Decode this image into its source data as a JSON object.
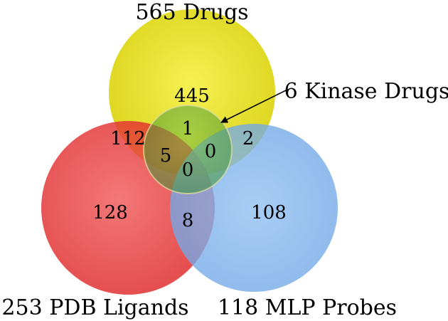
{
  "diagram": {
    "type": "venn",
    "sets": [
      {
        "id": "drugs",
        "label": "565 Drugs",
        "color": "#e8e000"
      },
      {
        "id": "pdb",
        "label": "253 PDB Ligands",
        "color": "#e83030"
      },
      {
        "id": "mlp",
        "label": "118 MLP Probes",
        "color": "#7fb2ea"
      }
    ],
    "kinase_circle": {
      "label": "6 Kinase Drugs",
      "color": "#2e8a2e"
    },
    "regions": {
      "drugs_only": "445",
      "pdb_only": "128",
      "mlp_only": "108",
      "drugs_pdb": "112",
      "drugs_mlp": "2",
      "pdb_mlp": "8",
      "kinase_drugs_only": "1",
      "kinase_drugs_pdb": "5",
      "kinase_drugs_mlp": "0",
      "kinase_all_three": "0"
    }
  }
}
